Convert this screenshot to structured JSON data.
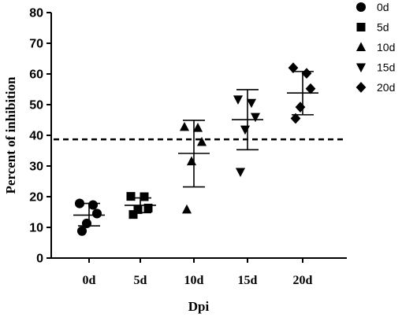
{
  "chart_data": {
    "type": "scatter",
    "title": "",
    "xlabel": "Dpi",
    "ylabel": "Percent of inhibition",
    "ylim": [
      0,
      80
    ],
    "yticks": [
      0,
      10,
      20,
      30,
      40,
      50,
      60,
      70,
      80
    ],
    "categories": [
      "0d",
      "5d",
      "10d",
      "15d",
      "20d"
    ],
    "reference_line": {
      "y": 38.7,
      "style": "dashed"
    },
    "legend": {
      "position": "top-right",
      "entries": [
        {
          "label": "0d",
          "marker": "circle"
        },
        {
          "label": "5d",
          "marker": "square"
        },
        {
          "label": "10d",
          "marker": "triangle-up"
        },
        {
          "label": "15d",
          "marker": "triangle-down"
        },
        {
          "label": "20d",
          "marker": "diamond"
        }
      ]
    },
    "series": [
      {
        "name": "0d",
        "category": "0d",
        "marker": "circle",
        "points": [
          17.8,
          17.3,
          14.5,
          11.3,
          8.8
        ],
        "mean": 14.0,
        "sd_upper": 17.8,
        "sd_lower": 10.5
      },
      {
        "name": "5d",
        "category": "5d",
        "marker": "square",
        "points": [
          20.1,
          20.0,
          16.3,
          15.8,
          14.2
        ],
        "mean": 17.2,
        "sd_upper": 19.6,
        "sd_lower": 14.8
      },
      {
        "name": "10d",
        "category": "10d",
        "marker": "triangle-up",
        "points": [
          42.7,
          42.4,
          37.8,
          31.5,
          15.8
        ],
        "mean": 34.1,
        "sd_upper": 44.9,
        "sd_lower": 23.2
      },
      {
        "name": "15d",
        "category": "15d",
        "marker": "triangle-down",
        "points": [
          51.7,
          50.6,
          46.0,
          41.9,
          28.1
        ],
        "mean": 45.1,
        "sd_upper": 54.9,
        "sd_lower": 35.3
      },
      {
        "name": "20d",
        "category": "20d",
        "marker": "diamond",
        "points": [
          62.0,
          60.2,
          55.2,
          49.2,
          45.5
        ],
        "mean": 53.8,
        "sd_upper": 60.8,
        "sd_lower": 46.7
      }
    ]
  }
}
